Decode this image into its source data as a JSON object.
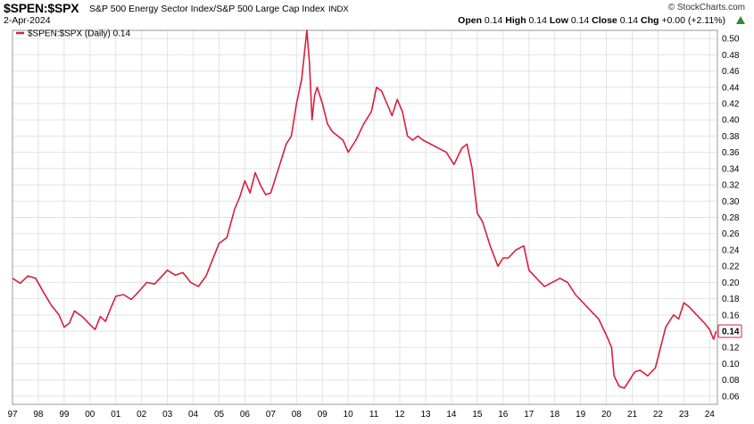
{
  "header": {
    "symbol": "$SPEN:$SPX",
    "description": "S&P 500 Energy Sector Index/S&P 500 Large Cap Index",
    "exchange": "INDX",
    "date": "2-Apr-2024",
    "copyright": "© StockCharts.com",
    "quote": {
      "open_label": "Open",
      "open": "0.14",
      "high_label": "High",
      "high": "0.14",
      "low_label": "Low",
      "low": "0.14",
      "close_label": "Close",
      "close": "0.14",
      "chg_label": "Chg",
      "chg": "+0.00 (+2.11%)"
    },
    "up_icon": "triangle-up-icon"
  },
  "legend": {
    "label": "$SPEN:$SPX (Daily) 0.14",
    "color": "#d4213d"
  },
  "last_value_label": "0.14",
  "chart_data": {
    "type": "line",
    "title": "S&P 500 Energy Sector Index/S&P 500 Large Cap Index",
    "series": [
      {
        "name": "$SPEN:$SPX (Daily)",
        "color": "#d4213d",
        "x": [
          1997.0,
          1997.3,
          1997.6,
          1997.9,
          1998.2,
          1998.5,
          1998.8,
          1999.0,
          1999.2,
          1999.4,
          1999.7,
          2000.0,
          2000.2,
          2000.4,
          2000.6,
          2000.8,
          2001.0,
          2001.3,
          2001.6,
          2001.9,
          2002.2,
          2002.5,
          2002.8,
          2003.0,
          2003.3,
          2003.6,
          2003.9,
          2004.2,
          2004.5,
          2004.8,
          2005.0,
          2005.3,
          2005.6,
          2005.8,
          2006.0,
          2006.2,
          2006.4,
          2006.6,
          2006.8,
          2007.0,
          2007.2,
          2007.4,
          2007.6,
          2007.8,
          2008.0,
          2008.2,
          2008.4,
          2008.5,
          2008.6,
          2008.7,
          2008.8,
          2009.0,
          2009.2,
          2009.4,
          2009.6,
          2009.8,
          2010.0,
          2010.3,
          2010.6,
          2010.9,
          2011.1,
          2011.3,
          2011.5,
          2011.7,
          2011.9,
          2012.1,
          2012.3,
          2012.5,
          2012.7,
          2012.9,
          2013.2,
          2013.5,
          2013.8,
          2014.1,
          2014.4,
          2014.6,
          2014.8,
          2015.0,
          2015.2,
          2015.5,
          2015.8,
          2016.0,
          2016.2,
          2016.5,
          2016.8,
          2017.0,
          2017.3,
          2017.6,
          2017.9,
          2018.2,
          2018.5,
          2018.8,
          2019.1,
          2019.4,
          2019.7,
          2020.0,
          2020.2,
          2020.3,
          2020.5,
          2020.7,
          2020.9,
          2021.1,
          2021.3,
          2021.6,
          2021.9,
          2022.1,
          2022.3,
          2022.6,
          2022.8,
          2023.0,
          2023.2,
          2023.5,
          2023.8,
          2024.0,
          2024.15,
          2024.25
        ],
        "values": [
          0.205,
          0.199,
          0.208,
          0.205,
          0.188,
          0.172,
          0.16,
          0.145,
          0.15,
          0.165,
          0.158,
          0.148,
          0.142,
          0.158,
          0.152,
          0.168,
          0.183,
          0.185,
          0.179,
          0.189,
          0.2,
          0.198,
          0.208,
          0.215,
          0.209,
          0.212,
          0.2,
          0.195,
          0.208,
          0.232,
          0.248,
          0.255,
          0.29,
          0.305,
          0.325,
          0.31,
          0.335,
          0.32,
          0.308,
          0.31,
          0.33,
          0.35,
          0.37,
          0.38,
          0.42,
          0.45,
          0.51,
          0.47,
          0.4,
          0.43,
          0.44,
          0.42,
          0.395,
          0.385,
          0.38,
          0.375,
          0.36,
          0.375,
          0.395,
          0.41,
          0.44,
          0.435,
          0.42,
          0.405,
          0.425,
          0.41,
          0.38,
          0.375,
          0.38,
          0.375,
          0.37,
          0.365,
          0.36,
          0.345,
          0.365,
          0.37,
          0.34,
          0.285,
          0.275,
          0.245,
          0.22,
          0.23,
          0.23,
          0.24,
          0.245,
          0.215,
          0.205,
          0.195,
          0.2,
          0.205,
          0.2,
          0.185,
          0.175,
          0.165,
          0.155,
          0.135,
          0.12,
          0.085,
          0.072,
          0.07,
          0.08,
          0.09,
          0.092,
          0.085,
          0.095,
          0.12,
          0.145,
          0.16,
          0.155,
          0.175,
          0.17,
          0.16,
          0.15,
          0.142,
          0.13,
          0.14
        ]
      }
    ],
    "ylim": [
      0.05,
      0.51
    ],
    "y_ticks": [
      "0.06",
      "0.08",
      "0.10",
      "0.12",
      "0.14",
      "0.16",
      "0.18",
      "0.20",
      "0.22",
      "0.24",
      "0.26",
      "0.28",
      "0.30",
      "0.32",
      "0.34",
      "0.36",
      "0.38",
      "0.40",
      "0.42",
      "0.44",
      "0.46",
      "0.48",
      "0.50"
    ],
    "y_tick_values": [
      0.06,
      0.08,
      0.1,
      0.12,
      0.14,
      0.16,
      0.18,
      0.2,
      0.22,
      0.24,
      0.26,
      0.28,
      0.3,
      0.32,
      0.34,
      0.36,
      0.38,
      0.4,
      0.42,
      0.44,
      0.46,
      0.48,
      0.5
    ],
    "xlim": [
      1997.0,
      2024.3
    ],
    "x_ticks": [
      "97",
      "98",
      "99",
      "00",
      "01",
      "02",
      "03",
      "04",
      "05",
      "06",
      "07",
      "08",
      "09",
      "10",
      "11",
      "12",
      "13",
      "14",
      "15",
      "16",
      "17",
      "18",
      "19",
      "20",
      "21",
      "22",
      "23",
      "24"
    ],
    "x_tick_values": [
      1997,
      1998,
      1999,
      2000,
      2001,
      2002,
      2003,
      2004,
      2005,
      2006,
      2007,
      2008,
      2009,
      2010,
      2011,
      2012,
      2013,
      2014,
      2015,
      2016,
      2017,
      2018,
      2019,
      2020,
      2021,
      2022,
      2023,
      2024
    ],
    "grid": true,
    "legend_position": "top-left"
  }
}
